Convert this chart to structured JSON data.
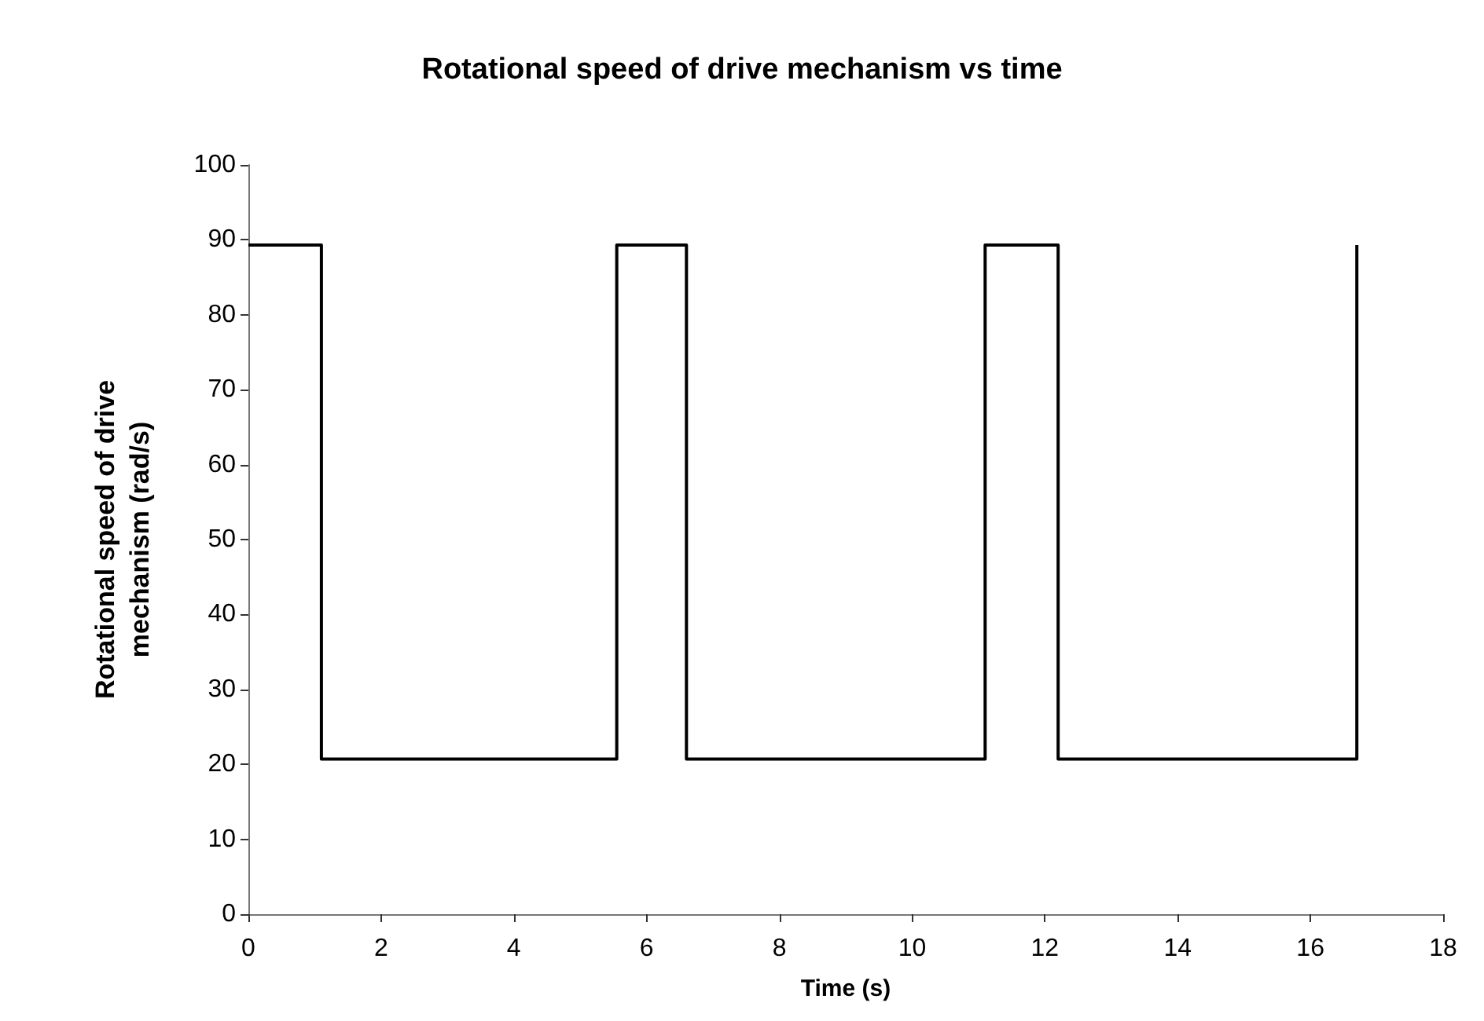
{
  "chart_data": {
    "type": "line",
    "title": "Rotational speed of drive mechanism vs time",
    "xlabel": "Time (s)",
    "ylabel": "Rotational speed of drive\nmechanism (rad/s)",
    "x": [
      0,
      1.1,
      1.1,
      5.55,
      5.55,
      6.6,
      6.6,
      11.1,
      11.1,
      12.2,
      12.2,
      16.7,
      16.7
    ],
    "series": [
      {
        "color": "#000000",
        "values": [
          89.3,
          89.3,
          20.7,
          20.7,
          89.3,
          89.3,
          20.7,
          20.7,
          89.3,
          89.3,
          20.7,
          20.7,
          89.3
        ]
      }
    ],
    "xlim": [
      0,
      18
    ],
    "xticks": [
      0,
      2,
      4,
      6,
      8,
      10,
      12,
      14,
      16,
      18
    ],
    "ylim": [
      0,
      100
    ],
    "yticks": [
      0,
      10,
      20,
      30,
      40,
      50,
      60,
      70,
      80,
      90,
      100
    ],
    "grid": false,
    "marker": "none",
    "line_style": "solid"
  }
}
